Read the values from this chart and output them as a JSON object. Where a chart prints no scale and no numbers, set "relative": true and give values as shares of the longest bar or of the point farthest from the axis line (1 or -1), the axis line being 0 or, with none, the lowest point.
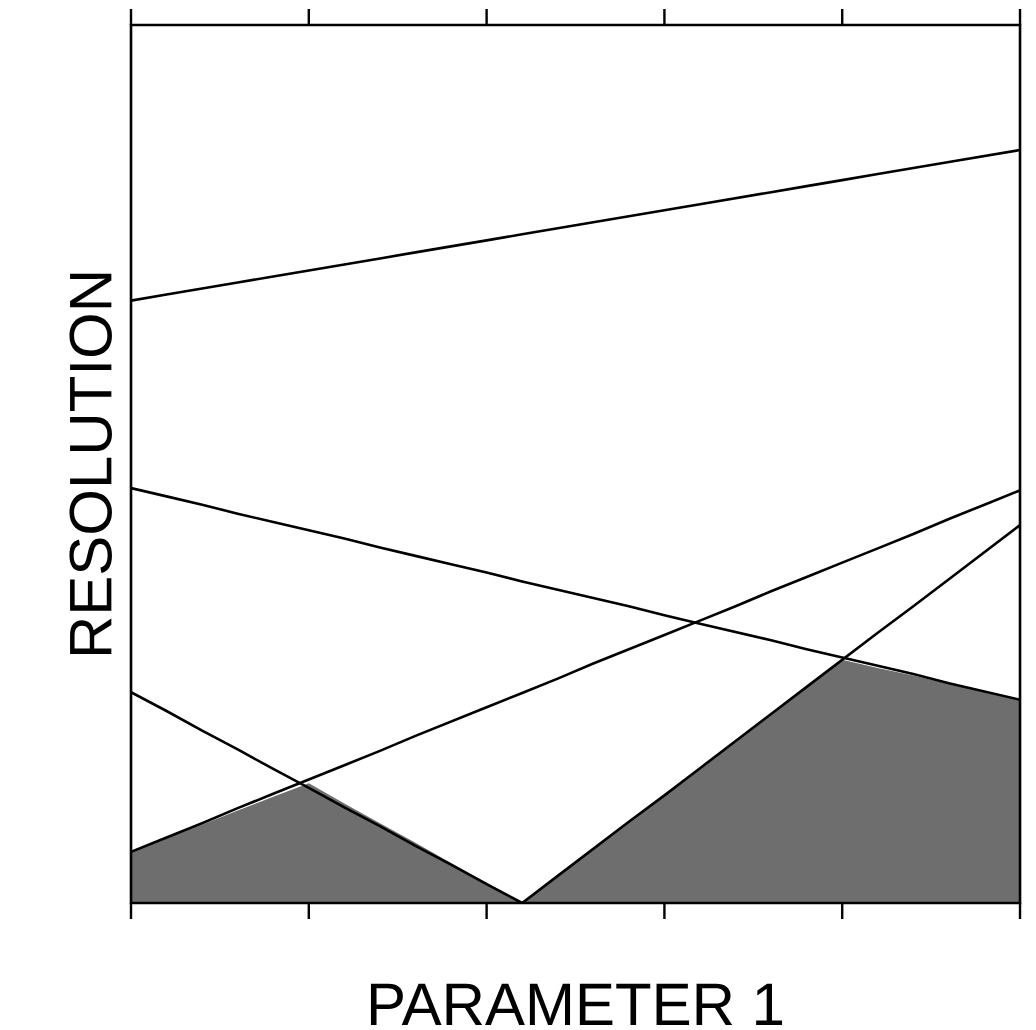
{
  "chart_data": {
    "type": "line",
    "xlabel": "PARAMETER 1",
    "ylabel": "RESOLUTION",
    "relative": true,
    "categories": [
      null,
      null,
      null,
      null,
      null,
      null,
      null,
      null,
      null,
      null,
      null,
      null,
      null,
      null,
      null,
      null,
      null,
      null,
      null,
      null,
      null,
      null,
      null,
      null,
      null,
      null
    ],
    "marker": "none",
    "line_style": "solid",
    "series": [
      {
        "type": "area",
        "color": "#6e6e6e",
        "values": [
          0.068,
          0.086,
          0.104,
          0.123,
          0.141,
          0.159,
          0.132,
          0.106,
          0.08,
          0.053,
          0.027,
          0,
          0.036,
          0.072,
          0.108,
          0.144,
          0.179,
          0.215,
          0.251,
          0.287,
          0.323,
          0.312,
          0.302,
          0.291,
          0.281,
          0.27
        ]
      },
      {
        "color": "#000000",
        "values": [
          0.8,
          0.808,
          0.816,
          0.824,
          0.832,
          0.84,
          0.848,
          0.856,
          0.864,
          0.872,
          0.88,
          0.888,
          0.896,
          0.904,
          0.912,
          0.92,
          0.928,
          0.936,
          0.944,
          0.952,
          0.96,
          0.968,
          0.976,
          0.984,
          0.992,
          1.0
        ]
      },
      {
        "color": "#000000",
        "values": [
          0.551,
          0.54,
          0.529,
          0.517,
          0.506,
          0.495,
          0.484,
          0.472,
          0.461,
          0.45,
          0.439,
          0.427,
          0.416,
          0.405,
          0.394,
          0.382,
          0.371,
          0.36,
          0.349,
          0.337,
          0.326,
          0.315,
          0.304,
          0.292,
          0.281,
          0.27
        ]
      },
      {
        "color": "#000000",
        "values": [
          0.068,
          0.087,
          0.106,
          0.126,
          0.145,
          0.164,
          0.183,
          0.202,
          0.222,
          0.241,
          0.26,
          0.279,
          0.298,
          0.318,
          0.337,
          0.356,
          0.375,
          0.394,
          0.414,
          0.433,
          0.452,
          0.471,
          0.49,
          0.51,
          0.529,
          0.548
        ]
      },
      {
        "color": "#000000",
        "values": [
          0.28,
          0.255,
          0.229,
          0.204,
          0.178,
          0.153,
          0.127,
          0.102,
          0.076,
          0.051,
          0.025,
          0,
          null,
          null,
          null,
          null,
          null,
          null,
          null,
          null,
          null,
          null,
          null,
          null,
          null,
          null
        ]
      },
      {
        "color": "#000000",
        "values": [
          null,
          null,
          null,
          null,
          null,
          null,
          null,
          null,
          null,
          null,
          null,
          0,
          0.036,
          0.072,
          0.108,
          0.143,
          0.179,
          0.215,
          0.251,
          0.287,
          0.323,
          0.359,
          0.394,
          0.43,
          0.466,
          0.502
        ]
      }
    ]
  }
}
